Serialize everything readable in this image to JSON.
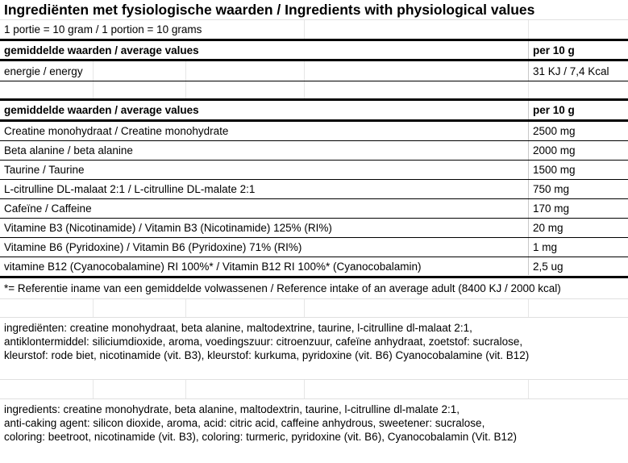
{
  "title": "Ingrediënten met fysiologische waarden / Ingredients with physiological values",
  "portion": "1 portie = 10 gram / 1 portion = 10 grams",
  "energy_table": {
    "header": [
      "gemiddelde waarden / average values",
      "per 10 g"
    ],
    "rows": [
      {
        "name": "energie / energy",
        "value": "31 KJ / 7,4 Kcal"
      }
    ]
  },
  "nutrient_table": {
    "header": [
      "gemiddelde waarden / average values",
      "per 10 g"
    ],
    "rows": [
      {
        "name": "Creatine monohydraat / Creatine monohydrate",
        "value": "2500 mg"
      },
      {
        "name": "Beta alanine  /  beta alanine",
        "value": "2000 mg"
      },
      {
        "name": "Taurine / Taurine",
        "value": "1500 mg"
      },
      {
        "name": "L-citrulline DL-malaat 2:1 / L-citrulline DL-malate 2:1",
        "value": "750 mg"
      },
      {
        "name": "Cafeïne / Caffeine",
        "value": "170 mg"
      },
      {
        "name": "Vitamine B3 (Nicotinamide) / Vitamin B3 (Nicotinamide) 125% (RI%)",
        "value": "20 mg"
      },
      {
        "name": "Vitamine B6 (Pyridoxine) / Vitamin B6 (Pyridoxine) 71% (RI%)",
        "value": "1 mg"
      },
      {
        "name": "vitamine B12 (Cyanocobalamine) RI 100%* / Vitamin B12 RI 100%* (Cyanocobalamin)",
        "value": "2,5 ug"
      }
    ]
  },
  "footnote": "*= Referentie iname van een gemiddelde volwassenen / Reference intake of an average adult (8400 KJ / 2000 kcal)",
  "ingredients_nl": [
    "ingrediënten: creatine monohydraat, beta alanine, maltodextrine, taurine, l-citrulline dl-malaat 2:1,",
    "antiklontermiddel: siliciumdioxide, aroma, voedingszuur: citroenzuur, cafeïne anhydraat, zoetstof: sucralose,",
    "kleurstof: rode biet, nicotinamide (vit. B3), kleurstof: kurkuma, pyridoxine (vit. B6) Cyanocobalamine (vit. B12)"
  ],
  "ingredients_en": [
    "ingredients: creatine monohydrate, beta alanine, maltodextrin, taurine, l-citrulline dl-malate 2:1,",
    "anti-caking agent: silicon dioxide, aroma, acid: citric acid, caffeine anhydrous, sweetener: sucralose,",
    "coloring: beetroot, nicotinamide (vit. B3), coloring: turmeric, pyridoxine (vit. B6), Cyanocobalamin (Vit. B12)"
  ]
}
